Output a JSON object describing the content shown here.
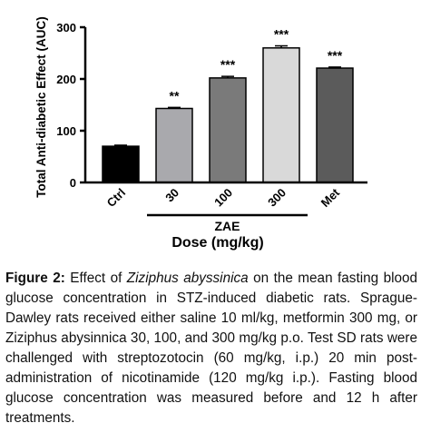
{
  "chart_data": {
    "type": "bar",
    "categories": [
      "Ctrl",
      "30",
      "100",
      "300",
      "Met"
    ],
    "values": [
      70,
      143,
      202,
      260,
      221
    ],
    "errors": [
      2,
      2,
      3,
      4,
      2
    ],
    "significance": [
      "",
      "**",
      "***",
      "***",
      "***"
    ],
    "bar_colors": [
      "#000000",
      "#a9a9ad",
      "#7a7a7a",
      "#d9d9d9",
      "#5b5b5b"
    ],
    "ylabel": "Total Anti-diabetic Effect (AUC)",
    "xlabel": "Dose (mg/kg)",
    "group_label": "ZAE",
    "group_members": [
      "30",
      "100",
      "300"
    ],
    "yticks": [
      0,
      100,
      200,
      300
    ],
    "ylim": [
      0,
      300
    ],
    "grid": false,
    "legend": "none"
  },
  "caption": {
    "label": "Figure 2:",
    "text_before": " Effect of ",
    "species": "Ziziphus abyssinica",
    "text_after": " on the mean fasting blood glucose concentration in STZ-induced diabetic rats. Sprague-Dawley rats received either saline 10 ml/kg, metformin 300 mg, or Ziziphus abysinnica 30, 100, and 300 mg/kg p.o. Test SD rats were challenged with streptozotocin (60 mg/kg, i.p.) 20 min post-administration of nicotinamide (120 mg/kg i.p.). Fasting blood glucose concentration was measured before and 12 h after treatments."
  }
}
